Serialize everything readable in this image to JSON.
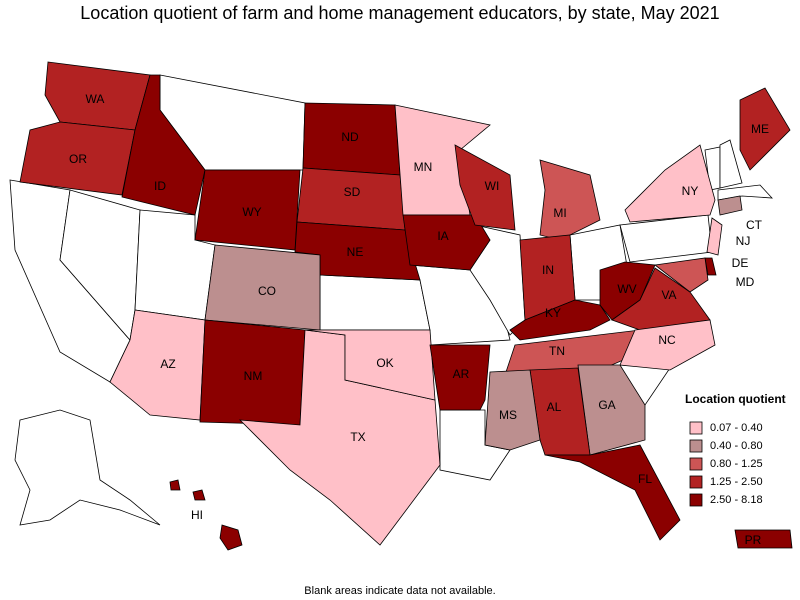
{
  "title": "Location quotient of farm and home management educators, by state, May 2021",
  "legend": {
    "title": "Location quotient",
    "items": [
      {
        "label": "0.07 - 0.40",
        "color": "#ffc0c8"
      },
      {
        "label": "0.40 - 0.80",
        "color": "#bc8f8f"
      },
      {
        "label": "0.80 - 1.25",
        "color": "#cd5555"
      },
      {
        "label": "1.25 - 2.50",
        "color": "#b22222"
      },
      {
        "label": "2.50 - 8.18",
        "color": "#8b0000"
      }
    ]
  },
  "states": [
    {
      "label": "WA",
      "color": "#b22222"
    },
    {
      "label": "OR",
      "color": "#b22222"
    },
    {
      "label": "ID",
      "color": "#8b0000"
    },
    {
      "label": "WY",
      "color": "#8b0000"
    },
    {
      "label": "ND",
      "color": "#8b0000"
    },
    {
      "label": "SD",
      "color": "#b22222"
    },
    {
      "label": "NE",
      "color": "#8b0000"
    },
    {
      "label": "CO",
      "color": "#bc8f8f"
    },
    {
      "label": "AZ",
      "color": "#ffc0c8"
    },
    {
      "label": "NM",
      "color": "#8b0000"
    },
    {
      "label": "TX",
      "color": "#ffc0c8"
    },
    {
      "label": "OK",
      "color": "#ffc0c8"
    },
    {
      "label": "MN",
      "color": "#ffc0c8"
    },
    {
      "label": "IA",
      "color": "#8b0000"
    },
    {
      "label": "WI",
      "color": "#b22222"
    },
    {
      "label": "MI",
      "color": "#cd5555"
    },
    {
      "label": "IN",
      "color": "#b22222"
    },
    {
      "label": "KY",
      "color": "#8b0000"
    },
    {
      "label": "WV",
      "color": "#8b0000"
    },
    {
      "label": "VA",
      "color": "#b22222"
    },
    {
      "label": "TN",
      "color": "#cd5555"
    },
    {
      "label": "NC",
      "color": "#ffc0c8"
    },
    {
      "label": "GA",
      "color": "#bc8f8f"
    },
    {
      "label": "AL",
      "color": "#b22222"
    },
    {
      "label": "MS",
      "color": "#bc8f8f"
    },
    {
      "label": "AR",
      "color": "#8b0000"
    },
    {
      "label": "FL",
      "color": "#8b0000"
    },
    {
      "label": "NY",
      "color": "#ffc0c8"
    },
    {
      "label": "NJ",
      "color": "#ffc0c8"
    },
    {
      "label": "DE",
      "color": "#8b0000"
    },
    {
      "label": "MD",
      "color": "#cd5555"
    },
    {
      "label": "CT",
      "color": "#bc8f8f"
    },
    {
      "label": "ME",
      "color": "#b22222"
    },
    {
      "label": "HI",
      "color": "#8b0000"
    },
    {
      "label": "PR",
      "color": "#8b0000"
    }
  ],
  "footnote": "Blank areas indicate data not available."
}
